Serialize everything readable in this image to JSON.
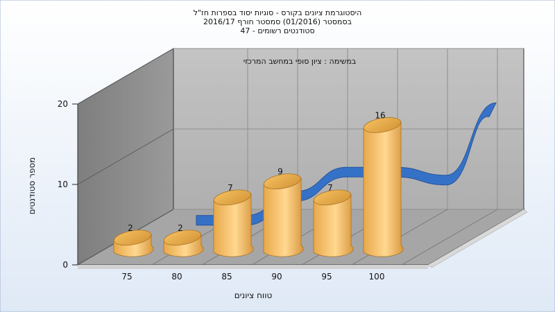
{
  "chart_data": {
    "type": "bar",
    "title_lines": [
      "היסטוגרמת ציונים בקורס - סוגיות יסוד בספרות חז\"ל",
      "בסמסטר  (01/2016)  סמסטר חורף 2016/17",
      "סטודנטים רשומים - 47"
    ],
    "subtitle": "במשימה : ציון סופי במחשב המרכזי",
    "xlabel": "טווח ציונים",
    "ylabel": "מספר סטודנטים",
    "x_ticks": [
      "75",
      "80",
      "85",
      "90",
      "95",
      "100"
    ],
    "y_ticks": [
      "0",
      "10",
      "20"
    ],
    "ylim": [
      0,
      20
    ],
    "bars": [
      {
        "x": 75,
        "value": 2,
        "label": "2"
      },
      {
        "x": 80,
        "value": 2,
        "label": "2"
      },
      {
        "x": 85,
        "value": 7,
        "label": "7"
      },
      {
        "x": 90,
        "value": 9,
        "label": "9"
      },
      {
        "x": 95,
        "value": 7,
        "label": "7"
      },
      {
        "x": 100,
        "value": 16,
        "label": "16"
      }
    ],
    "distribution_curve": {
      "x": [
        75,
        80,
        85,
        90,
        95,
        100,
        105
      ],
      "y": [
        2,
        2,
        5,
        8,
        8,
        7,
        16
      ]
    },
    "grid": true,
    "colors": {
      "bar_light": "#ffd890",
      "bar_mid": "#f0b050",
      "bar_dark": "#c88a2e",
      "curve": "#2f6fc9",
      "curve_dark": "#1f4f99",
      "back_wall": "#b7b7b7",
      "side_wall": "#8a8a8a",
      "floor": "#a6a6a6"
    }
  }
}
